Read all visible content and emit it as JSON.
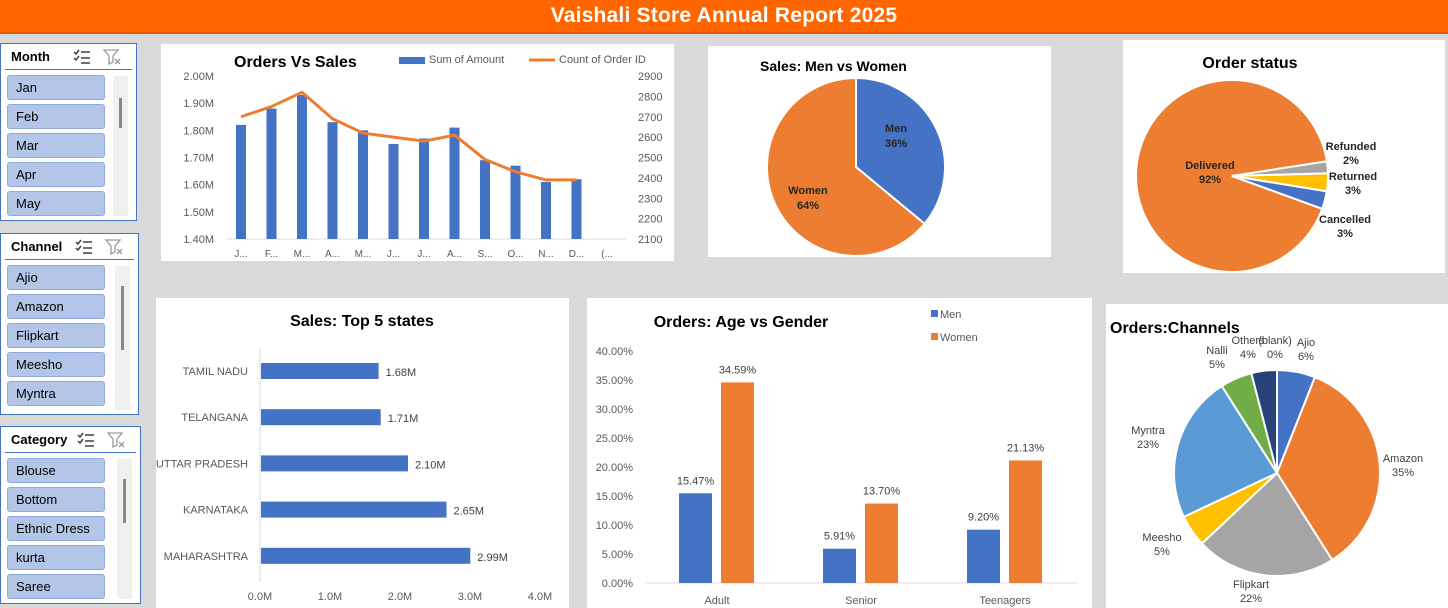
{
  "report_title": "Vaishali Store Annual Report 2025",
  "slicers": [
    {
      "title": "Month",
      "items": [
        "Jan",
        "Feb",
        "Mar",
        "Apr",
        "May"
      ]
    },
    {
      "title": "Channel",
      "items": [
        "Ajio",
        "Amazon",
        "Flipkart",
        "Meesho",
        "Myntra"
      ]
    },
    {
      "title": "Category",
      "items": [
        "Blouse",
        "Bottom",
        "Ethnic Dress",
        "kurta",
        "Saree"
      ]
    }
  ],
  "chart_data": [
    {
      "id": "orders_vs_sales",
      "type": "bar",
      "title": "Orders Vs Sales",
      "categories": [
        "J...",
        "F...",
        "M...",
        "A...",
        "M...",
        "J...",
        "J...",
        "A...",
        "S...",
        "O...",
        "N...",
        "D...",
        "(..."
      ],
      "series": [
        {
          "name": "Sum of Amount",
          "type": "bar",
          "color": "#4472c4",
          "values": [
            1.82,
            1.88,
            1.93,
            1.83,
            1.8,
            1.75,
            1.77,
            1.81,
            1.69,
            1.67,
            1.61,
            1.62,
            null
          ]
        },
        {
          "name": "Count of Order ID",
          "type": "line",
          "color": "#ed7d31",
          "values": [
            2700,
            2750,
            2820,
            2690,
            2620,
            2600,
            2580,
            2610,
            2490,
            2430,
            2390,
            2390,
            null
          ]
        }
      ],
      "y_ticks": [
        "2.00M",
        "1.90M",
        "1.80M",
        "1.70M",
        "1.60M",
        "1.50M",
        "1.40M"
      ],
      "ylim": [
        1.4,
        2.0
      ],
      "y2_ticks": [
        "2900",
        "2800",
        "2700",
        "2600",
        "2500",
        "2400",
        "2300",
        "2200",
        "2100"
      ],
      "y2lim": [
        2100,
        2900
      ],
      "legend": "top"
    },
    {
      "id": "men_vs_women",
      "type": "pie",
      "title": "Sales: Men vs Women",
      "slices": [
        {
          "name": "Men",
          "pct": "36%",
          "value": 36,
          "color": "#4472c4"
        },
        {
          "name": "Women",
          "pct": "64%",
          "value": 64,
          "color": "#ed7d31"
        }
      ]
    },
    {
      "id": "order_status",
      "type": "pie",
      "title": "Order status",
      "slices": [
        {
          "name": "Delivered",
          "pct": "92%",
          "value": 92,
          "color": "#ed7d31"
        },
        {
          "name": "Refunded",
          "pct": "2%",
          "value": 2,
          "color": "#a5a5a5"
        },
        {
          "name": "Returned",
          "pct": "3%",
          "value": 3,
          "color": "#ffc000"
        },
        {
          "name": "Cancelled",
          "pct": "3%",
          "value": 3,
          "color": "#4472c4"
        }
      ]
    },
    {
      "id": "top_states",
      "type": "bar",
      "orientation": "horizontal",
      "title": "Sales: Top 5 states",
      "categories": [
        "TAMIL NADU",
        "TELANGANA",
        "UTTAR PRADESH",
        "KARNATAKA",
        "MAHARASHTRA"
      ],
      "values": [
        1.68,
        1.71,
        2.1,
        2.65,
        2.99
      ],
      "data_labels": [
        "1.68M",
        "1.71M",
        "2.10M",
        "2.65M",
        "2.99M"
      ],
      "x_ticks": [
        "0.0M",
        "1.0M",
        "2.0M",
        "3.0M",
        "4.0M"
      ],
      "xlim": [
        0,
        4
      ],
      "color": "#4472c4"
    },
    {
      "id": "age_vs_gender",
      "type": "bar",
      "title": "Orders: Age vs Gender",
      "categories": [
        "Adult",
        "Senior",
        "Teenagers"
      ],
      "series": [
        {
          "name": "Men",
          "color": "#4472c4",
          "values": [
            15.47,
            5.91,
            9.2
          ],
          "labels": [
            "15.47%",
            "5.91%",
            "9.20%"
          ]
        },
        {
          "name": "Women",
          "color": "#ed7d31",
          "values": [
            34.59,
            13.7,
            21.13
          ],
          "labels": [
            "34.59%",
            "13.70%",
            "21.13%"
          ]
        }
      ],
      "y_ticks": [
        "40.00%",
        "35.00%",
        "30.00%",
        "25.00%",
        "20.00%",
        "15.00%",
        "10.00%",
        "5.00%",
        "0.00%"
      ],
      "ylim": [
        0,
        40
      ],
      "legend": "top-right"
    },
    {
      "id": "channels",
      "type": "pie",
      "title": "Orders:Channels",
      "slices": [
        {
          "name": "Ajio",
          "pct": "6%",
          "value": 6,
          "color": "#4472c4"
        },
        {
          "name": "Amazon",
          "pct": "35%",
          "value": 35,
          "color": "#ed7d31"
        },
        {
          "name": "Flipkart",
          "pct": "22%",
          "value": 22,
          "color": "#a5a5a5"
        },
        {
          "name": "Meesho",
          "pct": "5%",
          "value": 5,
          "color": "#ffc000"
        },
        {
          "name": "Myntra",
          "pct": "23%",
          "value": 23,
          "color": "#5b9bd5"
        },
        {
          "name": "Nalli",
          "pct": "5%",
          "value": 5,
          "color": "#70ad47"
        },
        {
          "name": "Others",
          "pct": "4%",
          "value": 4,
          "color": "#264478"
        },
        {
          "name": "(blank)",
          "pct": "0%",
          "value": 0,
          "color": "#9e480e"
        }
      ]
    }
  ]
}
